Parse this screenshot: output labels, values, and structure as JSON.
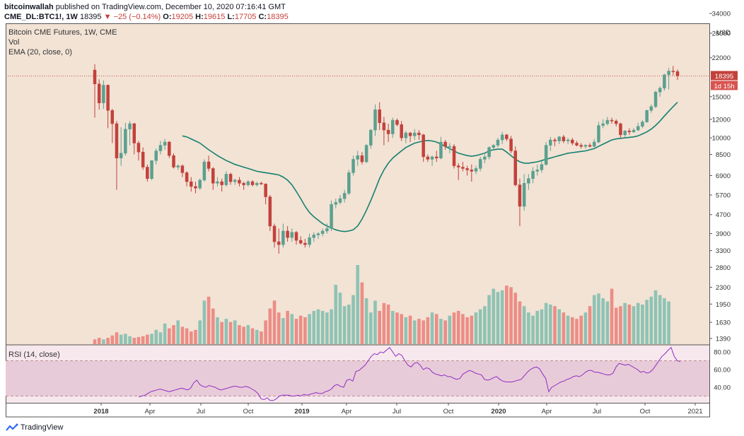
{
  "header": {
    "author": "bitcoinwallah",
    "published_text": "published on TradingView.com, December 10, 2020 07:16:41 GMT",
    "symbol": "CME_DL:BTC1!, 1W",
    "last": "18395",
    "change_arrow": "▼",
    "change": "−25 (−0.14%)",
    "o_label": "O:",
    "o_value": "19205",
    "h_label": "H:",
    "h_value": "19615",
    "l_label": "L:",
    "l_value": "17705",
    "c_label": "C:",
    "c_value": "18395"
  },
  "legend": {
    "title": "Bitcoin CME Futures, 1W, CME",
    "vol": "Vol",
    "ema": "EMA (20, close, 0)",
    "rsi": "RSI (14, close)"
  },
  "price_axis": {
    "currency": "USD",
    "ticks": [
      "34000",
      "28000",
      "22000",
      "18395",
      "15000",
      "12000",
      "10000",
      "8500",
      "6900",
      "5700",
      "4700",
      "3900",
      "3300",
      "2800",
      "2300",
      "1950",
      "1630",
      "1390"
    ],
    "last_price_label": "18395",
    "countdown_label": "1d 15h"
  },
  "rsi_axis": {
    "ticks": [
      "80.00",
      "60.00",
      "40.00"
    ]
  },
  "time_axis": {
    "labels": [
      "2018",
      "Apr",
      "Jul",
      "Oct",
      "2019",
      "Apr",
      "Jul",
      "Oct",
      "2020",
      "Apr",
      "Jul",
      "Oct",
      "2021"
    ]
  },
  "footer": {
    "brand": "TradingView"
  },
  "colors": {
    "background": "#f2e3d5",
    "up": "#5ba08f",
    "down": "#c3413b",
    "up_vol": "#8ec3b4",
    "down_vol": "#ec8d86",
    "ema": "#15816f",
    "rsi": "#8e2cc4",
    "rsi_band": "#e8cbd8"
  },
  "chart_data": {
    "type": "candlestick",
    "title": "Bitcoin CME Futures, 1W, CME",
    "interval": "1W",
    "y_scale": "log",
    "ylim": [
      1200,
      34000
    ],
    "x_range": [
      "2017-12-18",
      "2020-12-21"
    ],
    "last_price": 18395,
    "candles": [
      [
        19500,
        20650,
        12200,
        17000
      ],
      [
        17000,
        17800,
        13200,
        14100
      ],
      [
        14100,
        17600,
        13300,
        16800
      ],
      [
        16800,
        16900,
        11000,
        13100
      ],
      [
        13100,
        13300,
        9500,
        11500
      ],
      [
        11500,
        11800,
        6000,
        8200
      ],
      [
        8200,
        11100,
        7600,
        8600
      ],
      [
        8600,
        11600,
        8400,
        10900
      ],
      [
        10900,
        11800,
        9300,
        11500
      ],
      [
        11500,
        11600,
        8500,
        9500
      ],
      [
        9500,
        9700,
        8000,
        8700
      ],
      [
        8700,
        9100,
        7300,
        7500
      ],
      [
        7500,
        7700,
        6500,
        6700
      ],
      [
        6700,
        8000,
        6600,
        8000
      ],
      [
        8000,
        9000,
        7700,
        8800
      ],
      [
        8800,
        9700,
        8500,
        9300
      ],
      [
        9300,
        9900,
        8900,
        9600
      ],
      [
        9600,
        9700,
        8200,
        8400
      ],
      [
        8400,
        8600,
        7400,
        7500
      ],
      [
        7500,
        7700,
        7300,
        7600
      ],
      [
        7600,
        7700,
        6800,
        7100
      ],
      [
        7100,
        7200,
        6200,
        6500
      ],
      [
        6500,
        6800,
        5900,
        6200
      ],
      [
        6200,
        6500,
        5800,
        6100
      ],
      [
        6100,
        6700,
        6000,
        6600
      ],
      [
        6600,
        8100,
        6500,
        7900
      ],
      [
        7900,
        8400,
        7200,
        7400
      ],
      [
        7400,
        7500,
        6000,
        6400
      ],
      [
        6400,
        6800,
        6200,
        6500
      ],
      [
        6500,
        6700,
        5900,
        6300
      ],
      [
        6300,
        7200,
        6200,
        7000
      ],
      [
        7000,
        7100,
        6300,
        6500
      ],
      [
        6500,
        6700,
        6300,
        6600
      ],
      [
        6600,
        6800,
        6200,
        6400
      ],
      [
        6400,
        6500,
        6000,
        6300
      ],
      [
        6300,
        6600,
        6200,
        6500
      ],
      [
        6500,
        6600,
        6200,
        6300
      ],
      [
        6300,
        6500,
        6200,
        6400
      ],
      [
        6400,
        6500,
        6300,
        6350
      ],
      [
        6350,
        6400,
        5200,
        5600
      ],
      [
        5600,
        5700,
        4000,
        4200
      ],
      [
        4200,
        4300,
        3400,
        3600
      ],
      [
        3600,
        4100,
        3200,
        3500
      ],
      [
        3500,
        4300,
        3400,
        4000
      ],
      [
        4000,
        4200,
        3600,
        3750
      ],
      [
        3750,
        4100,
        3600,
        3950
      ],
      [
        3950,
        4000,
        3500,
        3650
      ],
      [
        3650,
        3800,
        3500,
        3550
      ],
      [
        3550,
        3700,
        3400,
        3500
      ],
      [
        3500,
        3900,
        3400,
        3750
      ],
      [
        3750,
        3950,
        3600,
        3850
      ],
      [
        3850,
        3950,
        3700,
        3900
      ],
      [
        3900,
        4100,
        3800,
        4000
      ],
      [
        4000,
        4300,
        3900,
        4100
      ],
      [
        4100,
        5400,
        4000,
        5200
      ],
      [
        5200,
        5500,
        5000,
        5300
      ],
      [
        5300,
        5700,
        5200,
        5500
      ],
      [
        5500,
        6000,
        5300,
        5800
      ],
      [
        5800,
        7300,
        5700,
        7100
      ],
      [
        7100,
        8400,
        6900,
        8100
      ],
      [
        8100,
        8800,
        7600,
        8400
      ],
      [
        8400,
        8700,
        7700,
        7900
      ],
      [
        7900,
        9400,
        7800,
        9300
      ],
      [
        9300,
        10900,
        9000,
        10800
      ],
      [
        10800,
        13900,
        10200,
        13200
      ],
      [
        13200,
        14200,
        10800,
        11600
      ],
      [
        11600,
        12300,
        9300,
        10800
      ],
      [
        10800,
        11500,
        9600,
        10400
      ],
      [
        10400,
        12200,
        10000,
        11900
      ],
      [
        11900,
        12100,
        11200,
        11400
      ],
      [
        11400,
        11800,
        9700,
        10000
      ],
      [
        10000,
        10700,
        9500,
        10500
      ],
      [
        10500,
        10600,
        9600,
        10200
      ],
      [
        10200,
        10900,
        9800,
        10500
      ],
      [
        10500,
        10800,
        9800,
        10300
      ],
      [
        10300,
        10400,
        7900,
        8300
      ],
      [
        8300,
        8500,
        7900,
        8100
      ],
      [
        8100,
        8400,
        7600,
        8300
      ],
      [
        8300,
        8800,
        7900,
        8200
      ],
      [
        8200,
        10100,
        8100,
        9600
      ],
      [
        9600,
        9800,
        8900,
        9200
      ],
      [
        9200,
        9500,
        8600,
        9200
      ],
      [
        9200,
        9400,
        7400,
        7600
      ],
      [
        7600,
        7800,
        6600,
        7500
      ],
      [
        7500,
        7900,
        7200,
        7400
      ],
      [
        7400,
        7600,
        6900,
        7300
      ],
      [
        7300,
        7700,
        6500,
        7200
      ],
      [
        7200,
        7600,
        7000,
        7400
      ],
      [
        7400,
        8300,
        7200,
        8100
      ],
      [
        8100,
        8500,
        7800,
        8300
      ],
      [
        8300,
        9200,
        8100,
        9100
      ],
      [
        9100,
        9400,
        8900,
        9300
      ],
      [
        9300,
        10000,
        9100,
        9800
      ],
      [
        9800,
        10600,
        9400,
        10300
      ],
      [
        10300,
        10400,
        9700,
        9900
      ],
      [
        9900,
        10200,
        8600,
        8800
      ],
      [
        8800,
        9200,
        6200,
        6300
      ],
      [
        6300,
        6700,
        4200,
        5100
      ],
      [
        5100,
        7000,
        4900,
        6400
      ],
      [
        6400,
        7000,
        6000,
        6700
      ],
      [
        6700,
        7500,
        6400,
        7200
      ],
      [
        7200,
        7700,
        6900,
        7300
      ],
      [
        7300,
        8000,
        7100,
        7700
      ],
      [
        7700,
        9600,
        7600,
        9300
      ],
      [
        9300,
        10100,
        8800,
        9800
      ],
      [
        9800,
        10000,
        9200,
        9700
      ],
      [
        9700,
        10200,
        9400,
        10100
      ],
      [
        10100,
        10300,
        9500,
        9700
      ],
      [
        9700,
        10000,
        9400,
        9800
      ],
      [
        9800,
        10000,
        9300,
        9500
      ],
      [
        9500,
        9700,
        9200,
        9300
      ],
      [
        9300,
        9500,
        9000,
        9200
      ],
      [
        9200,
        9400,
        9000,
        9300
      ],
      [
        9300,
        9500,
        9100,
        9200
      ],
      [
        9200,
        9900,
        9100,
        9600
      ],
      [
        9600,
        11700,
        9500,
        11300
      ],
      [
        11300,
        12000,
        11000,
        11500
      ],
      [
        11500,
        12300,
        11300,
        11900
      ],
      [
        11900,
        12200,
        11500,
        11800
      ],
      [
        11800,
        12000,
        11200,
        11500
      ],
      [
        11500,
        11600,
        9900,
        10300
      ],
      [
        10300,
        10800,
        10100,
        10700
      ],
      [
        10700,
        11000,
        10300,
        10600
      ],
      [
        10600,
        11000,
        10500,
        10800
      ],
      [
        10800,
        11600,
        10700,
        11200
      ],
      [
        11200,
        11900,
        11000,
        11700
      ],
      [
        11700,
        13200,
        11600,
        13100
      ],
      [
        13100,
        13900,
        12800,
        13600
      ],
      [
        13600,
        15900,
        13400,
        15700
      ],
      [
        15700,
        16600,
        15000,
        16300
      ],
      [
        16300,
        18800,
        15900,
        18600
      ],
      [
        18600,
        19900,
        16100,
        19300
      ],
      [
        19300,
        20300,
        18500,
        19200
      ],
      [
        19205,
        19615,
        17705,
        18395
      ]
    ],
    "volume_relative": [
      0.06,
      0.08,
      0.06,
      0.08,
      0.11,
      0.15,
      0.12,
      0.13,
      0.1,
      0.08,
      0.09,
      0.1,
      0.12,
      0.13,
      0.18,
      0.15,
      0.26,
      0.2,
      0.24,
      0.3,
      0.22,
      0.2,
      0.16,
      0.18,
      0.3,
      0.55,
      0.6,
      0.45,
      0.34,
      0.28,
      0.32,
      0.28,
      0.3,
      0.24,
      0.22,
      0.24,
      0.2,
      0.18,
      0.16,
      0.3,
      0.45,
      0.55,
      0.4,
      0.33,
      0.42,
      0.38,
      0.32,
      0.36,
      0.34,
      0.38,
      0.42,
      0.44,
      0.42,
      0.4,
      0.44,
      0.75,
      0.65,
      0.48,
      0.5,
      0.62,
      1.0,
      0.78,
      0.58,
      0.4,
      0.55,
      0.42,
      0.52,
      0.5,
      0.42,
      0.4,
      0.38,
      0.34,
      0.36,
      0.3,
      0.32,
      0.3,
      0.34,
      0.4,
      0.38,
      0.32,
      0.3,
      0.36,
      0.4,
      0.42,
      0.38,
      0.34,
      0.36,
      0.4,
      0.44,
      0.48,
      0.62,
      0.7,
      0.66,
      0.68,
      0.74,
      0.72,
      0.65,
      0.54,
      0.48,
      0.4,
      0.36,
      0.42,
      0.44,
      0.52,
      0.5,
      0.48,
      0.44,
      0.4,
      0.36,
      0.34,
      0.32,
      0.36,
      0.4,
      0.48,
      0.62,
      0.64,
      0.58,
      0.54,
      0.7,
      0.46,
      0.48,
      0.52,
      0.5,
      0.48,
      0.52,
      0.5,
      0.56,
      0.6,
      0.68,
      0.62,
      0.58,
      0.54
    ],
    "ema": [
      10200,
      10100,
      9900,
      9700,
      9500,
      9200,
      8900,
      8650,
      8400,
      8200,
      8000,
      7850,
      7700,
      7600,
      7500,
      7400,
      7300,
      7200,
      7150,
      7100,
      7050,
      7000,
      6950,
      6800,
      6600,
      6300,
      5900,
      5500,
      5100,
      4800,
      4600,
      4450,
      4300,
      4200,
      4120,
      4050,
      4000,
      3980,
      4000,
      4050,
      4200,
      4500,
      4900,
      5400,
      6000,
      6700,
      7300,
      7800,
      8200,
      8500,
      8800,
      9100,
      9300,
      9500,
      9600,
      9700,
      9750,
      9700,
      9600,
      9400,
      9200,
      9000,
      8800,
      8600,
      8500,
      8400,
      8350,
      8400,
      8500,
      8600,
      8800,
      8900,
      8950,
      8950,
      8700,
      8400,
      8100,
      7900,
      7800,
      7800,
      7850,
      7900,
      8000,
      8100,
      8200,
      8300,
      8400,
      8500,
      8600,
      8650,
      8700,
      8750,
      8800,
      8900,
      9000,
      9200,
      9400,
      9600,
      9800,
      9900,
      9950,
      10000,
      10050,
      10100,
      10200,
      10400,
      10600,
      10900,
      11300,
      11800,
      12400,
      13000,
      13600,
      14200
    ],
    "rsi": [
      29,
      30,
      31,
      33,
      35,
      36,
      37,
      38,
      37,
      36,
      35,
      36,
      37,
      38,
      39,
      38,
      37,
      39,
      45,
      48,
      43,
      41,
      40,
      42,
      41,
      40,
      38,
      37,
      38,
      39,
      40,
      41,
      41,
      40,
      40,
      41,
      40,
      38,
      36,
      33,
      27,
      26,
      28,
      25,
      25,
      27,
      30,
      31,
      31,
      31,
      30,
      30,
      31,
      30,
      32,
      31,
      32,
      33,
      34,
      33,
      33,
      35,
      36,
      38,
      42,
      43,
      41,
      40,
      48,
      49,
      47,
      58,
      59,
      62,
      65,
      70,
      75,
      78,
      77,
      80,
      79,
      82,
      85,
      80,
      75,
      78,
      76,
      70,
      65,
      63,
      67,
      68,
      65,
      60,
      62,
      61,
      57,
      55,
      54,
      53,
      54,
      52,
      52,
      50,
      49,
      50,
      55,
      57,
      59,
      58,
      56,
      55,
      54,
      49,
      48,
      49,
      51,
      52,
      49,
      47,
      46,
      46,
      46,
      47,
      48,
      49,
      53,
      57,
      60,
      62,
      63,
      61,
      55,
      50,
      35,
      40,
      42,
      44,
      46,
      47,
      49,
      50,
      52,
      53,
      52,
      54,
      57,
      59,
      59,
      57,
      57,
      56,
      55,
      54,
      54,
      56,
      63,
      67,
      66,
      65,
      66,
      64,
      62,
      60,
      57,
      58,
      56,
      57,
      60,
      65,
      70,
      75,
      78,
      82,
      85,
      75,
      70,
      69
    ]
  }
}
